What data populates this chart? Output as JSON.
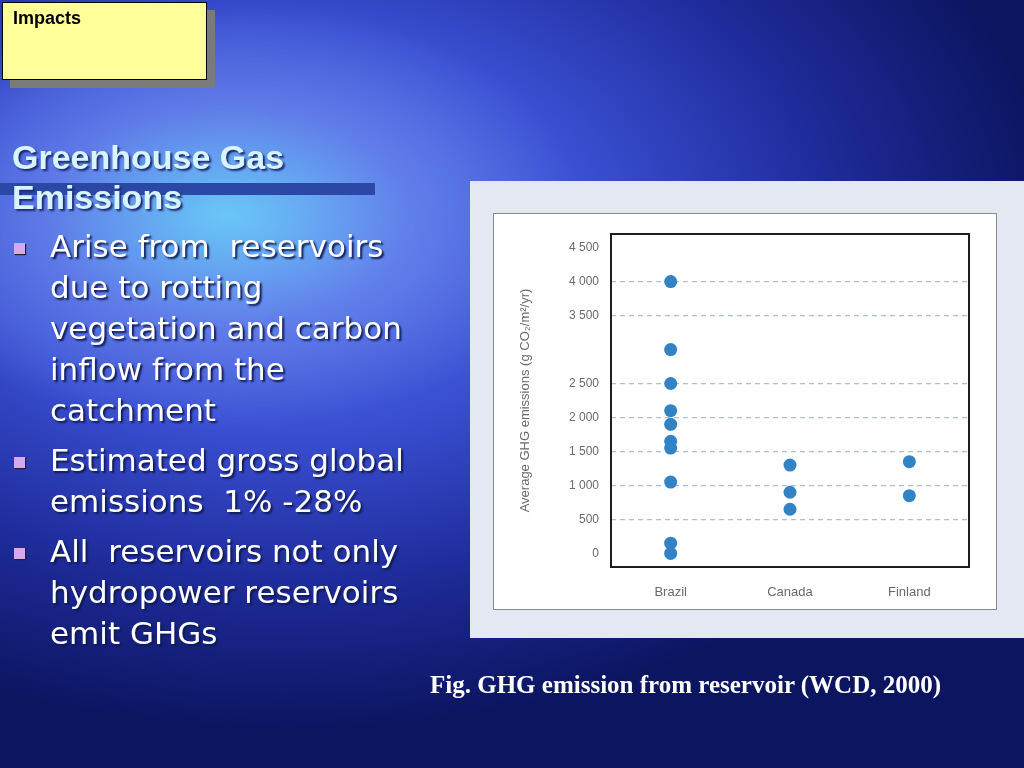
{
  "chart_data": {
    "type": "scatter",
    "title": "Greenhouse Gas Emissions",
    "subtitle": "Impacts",
    "ylabel": "Average GHG emissions (g CO₂/m²/yr)",
    "annotations": [
      "Arise from  reservoirs due to rotting vegetation and carbon inflow from the catchment",
      "Estimated gross global emissions  1% -28%",
      "All  reservoirs not only hydropower reservoirs emit GHGs",
      "Fig. GHG emission from reservoir (WCD, 2000)"
    ],
    "categories": [
      "Brazil",
      "Canada",
      "Finland"
    ],
    "series": [
      {
        "color": "#3282c4",
        "x": [
          "Brazil",
          "Brazil",
          "Brazil",
          "Brazil",
          "Brazil",
          "Brazil",
          "Brazil",
          "Brazil",
          "Brazil",
          "Brazil",
          "Canada",
          "Canada",
          "Canada",
          "Finland",
          "Finland"
        ],
        "values": [
          4000,
          3000,
          2500,
          2100,
          1900,
          1650,
          1550,
          1050,
          150,
          0,
          1300,
          900,
          650,
          1350,
          850
        ]
      }
    ],
    "marker": "circle",
    "ylim": [
      -200,
      4700
    ],
    "yticks": [
      0,
      500,
      {
        "value": 1000,
        "label": "1 000"
      },
      {
        "value": 1500,
        "label": "1 500"
      },
      {
        "value": 2000,
        "label": "2 000"
      },
      {
        "value": 2500,
        "label": "2 500"
      },
      {
        "value": 3500,
        "label": "3 500"
      },
      {
        "value": 4000,
        "label": "4 000"
      },
      {
        "value": 4500,
        "label": "4 500"
      }
    ],
    "grid": "y"
  }
}
